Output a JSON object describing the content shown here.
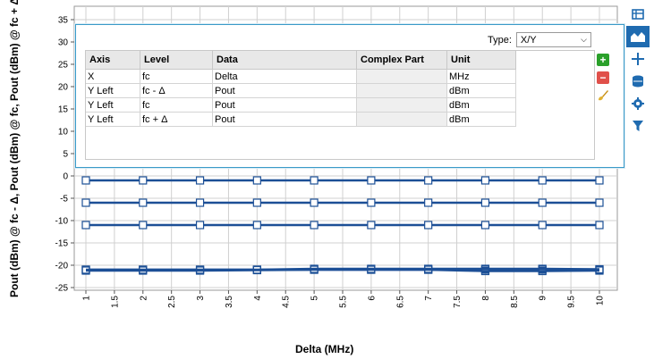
{
  "chart_data": {
    "type": "line",
    "xlabel": "Delta (MHz)",
    "ylabel": "Pout (dBm) @ fc - Δ, Pout (dBm) @ fc, Pout (dBm) @ fc + Δ",
    "xlim": [
      1,
      10
    ],
    "ylim": [
      -25,
      35
    ],
    "x_ticks": [
      "1",
      "1.5",
      "2",
      "2.5",
      "3",
      "3.5",
      "4",
      "4.5",
      "5",
      "5.5",
      "6",
      "6.5",
      "7",
      "7.5",
      "8",
      "8.5",
      "9",
      "9.5",
      "10"
    ],
    "y_ticks": [
      "35",
      "30",
      "25",
      "20",
      "15",
      "10",
      "5",
      "0",
      "-5",
      "-10",
      "-15",
      "-20",
      "-25"
    ],
    "x": [
      1,
      2,
      3,
      4,
      5,
      6,
      7,
      8,
      9,
      10
    ],
    "series": [
      {
        "values": [
          -1,
          -1,
          -1,
          -1,
          -1,
          -1,
          -1,
          -1,
          -1,
          -1
        ]
      },
      {
        "values": [
          -6,
          -6,
          -6,
          -6,
          -6,
          -6,
          -6,
          -6,
          -6,
          -6
        ]
      },
      {
        "values": [
          -11,
          -11,
          -11,
          -11,
          -11,
          -11,
          -11,
          -11,
          -11,
          -11
        ]
      },
      {
        "values": [
          -21,
          -21,
          -21,
          -21,
          -21,
          -21,
          -21,
          -21,
          -21,
          -21
        ]
      },
      {
        "values": [
          -21.2,
          -21.2,
          -21.2,
          -21.1,
          -21.0,
          -21.0,
          -21.0,
          -21.3,
          -21.3,
          -21.2
        ]
      },
      {
        "values": [
          -21.0,
          -21.0,
          -21.0,
          -21.0,
          -20.8,
          -20.8,
          -20.8,
          -20.8,
          -20.8,
          -20.9
        ]
      }
    ],
    "grid": true,
    "line_color": "#1c4f96"
  },
  "panel": {
    "type_label": "Type:",
    "type_value": "X/Y",
    "columns": [
      "Axis",
      "Level",
      "Data",
      "Complex Part",
      "Unit"
    ],
    "rows": [
      {
        "axis": "X",
        "level": "fc",
        "data": "Delta",
        "complex": "",
        "unit": "MHz"
      },
      {
        "axis": "Y Left",
        "level": "fc - Δ",
        "data": "Pout",
        "complex": "",
        "unit": "dBm"
      },
      {
        "axis": "Y Left",
        "level": "fc",
        "data": "Pout",
        "complex": "",
        "unit": "dBm"
      },
      {
        "axis": "Y Left",
        "level": "fc + Δ",
        "data": "Pout",
        "complex": "",
        "unit": "dBm"
      }
    ]
  },
  "toolbar": {
    "icons": [
      "table-icon",
      "chart-area-icon",
      "crosshair-icon",
      "data-icon",
      "gear-icon",
      "filter-icon"
    ],
    "active": "chart-area-icon",
    "accent": "#1f6bb0"
  }
}
